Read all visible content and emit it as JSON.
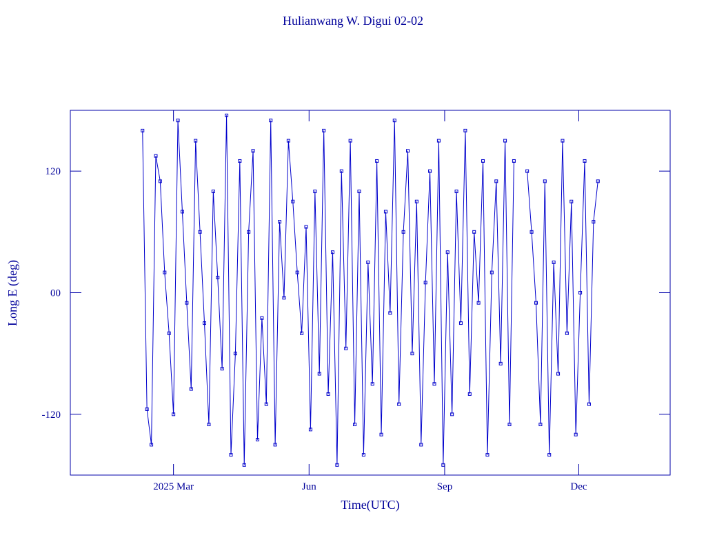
{
  "chart_data": {
    "type": "line",
    "title": "Hulianwang W. Digui 02-02",
    "x_label": "Time(UTC)",
    "y_label": "Long E (deg)",
    "xlim": [
      -11,
      396
    ],
    "ylim": [
      -180,
      180
    ],
    "xticks": [
      {
        "value": 59,
        "label": "2025 Mar"
      },
      {
        "value": 151,
        "label": "Jun"
      },
      {
        "value": 243,
        "label": "Sep"
      },
      {
        "value": 334,
        "label": "Dec"
      }
    ],
    "yticks": [
      -120,
      {
        "value": 0,
        "label": "00"
      },
      120
    ],
    "x": [
      38,
      41,
      44,
      47,
      50,
      53,
      56,
      59,
      62,
      65,
      68,
      71,
      74,
      77,
      80,
      83,
      86,
      89,
      92,
      95,
      98,
      101,
      104,
      107,
      110,
      113,
      116,
      119,
      122,
      125,
      128,
      131,
      134,
      137,
      140,
      143,
      146,
      149,
      152,
      155,
      158,
      161,
      164,
      167,
      170,
      173,
      176,
      179,
      182,
      185,
      188,
      191,
      194,
      197,
      200,
      203,
      206,
      209,
      212,
      215,
      218,
      221,
      224,
      227,
      230,
      233,
      236,
      239,
      242,
      245,
      248,
      251,
      254,
      257,
      260,
      263,
      266,
      269,
      272,
      275,
      278,
      281,
      284,
      287,
      290,
      293,
      296,
      299,
      302,
      305,
      308,
      311,
      314,
      317,
      320,
      323,
      326,
      329,
      332,
      335,
      338,
      341,
      344,
      347
    ],
    "series": [
      {
        "color": "#0000cc",
        "values": [
          160,
          -115,
          -150,
          135,
          110,
          20,
          -40,
          -120,
          170,
          80,
          -10,
          -95,
          150,
          60,
          -30,
          -130,
          100,
          15,
          -75,
          175,
          -160,
          -60,
          130,
          -170,
          60,
          140,
          -145,
          -25,
          -110,
          170,
          -150,
          70,
          -5,
          150,
          90,
          20,
          -40,
          65,
          -135,
          100,
          -80,
          160,
          -100,
          40,
          -170,
          120,
          -55,
          150,
          -130,
          100,
          -160,
          30,
          -90,
          130,
          -140,
          80,
          -20,
          170,
          -110,
          60,
          140,
          -60,
          90,
          -150,
          10,
          120,
          -90,
          150,
          -170,
          40,
          -120,
          100,
          -30,
          160,
          -100,
          60,
          -10,
          130,
          -160,
          20,
          110,
          -70,
          150,
          -130,
          130,
          null,
          null,
          120,
          60,
          -10,
          -130,
          110,
          -160,
          30,
          -80,
          150,
          -40,
          90,
          -140,
          0,
          130,
          -110,
          70,
          110
        ]
      }
    ]
  }
}
